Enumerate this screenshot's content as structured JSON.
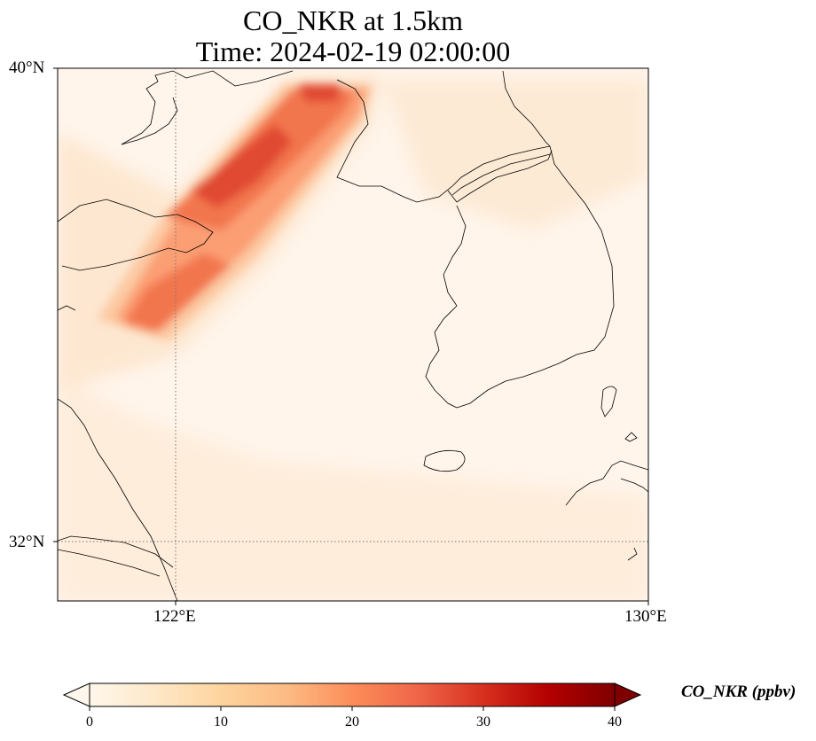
{
  "title": {
    "line1": "CO_NKR at 1.5km",
    "line2": "Time: 2024-02-19 02:00:00"
  },
  "map": {
    "extent": {
      "lon_min": 120,
      "lon_max": 130,
      "lat_min": 31,
      "lat_max": 40
    },
    "gridlines": {
      "lon": [
        122
      ],
      "lat": [
        32
      ],
      "style": "dotted",
      "color": "#777777"
    },
    "lat_ticks": [
      {
        "value": 40,
        "label": "40°N"
      },
      {
        "value": 32,
        "label": "32°N"
      }
    ],
    "lon_ticks": [
      {
        "value": 122,
        "label": "122°E"
      },
      {
        "value": 130,
        "label": "130°E"
      }
    ],
    "background_color": "#fff5eb",
    "plume_colors": [
      "#fde7d0",
      "#fcc9a2",
      "#fb9e73",
      "#f2764e",
      "#e04a33"
    ]
  },
  "colorbar": {
    "label": "CO_NKR (ppbv)",
    "min": 0,
    "max": 40,
    "ticks": [
      {
        "value": 0,
        "label": "0"
      },
      {
        "value": 10,
        "label": "10"
      },
      {
        "value": 20,
        "label": "20"
      },
      {
        "value": 30,
        "label": "30"
      },
      {
        "value": 40,
        "label": "40"
      }
    ],
    "extend": "both",
    "colormap": "OrRd",
    "stops": [
      "#fff7ec",
      "#fee8c8",
      "#fdd49e",
      "#fdbb84",
      "#fc8d59",
      "#ef6548",
      "#d7301f",
      "#b30000",
      "#7f0000"
    ]
  }
}
